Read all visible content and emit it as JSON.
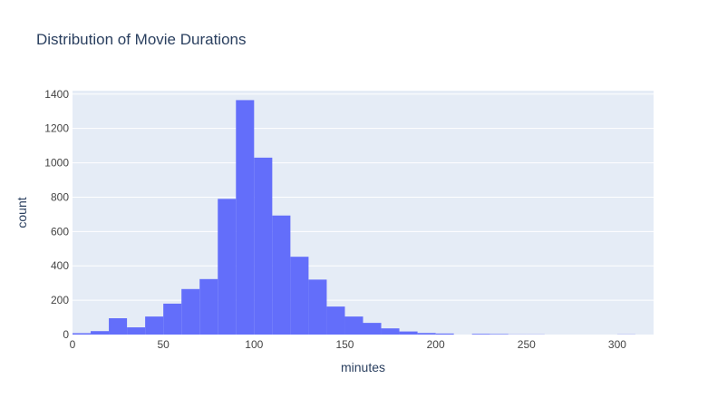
{
  "chart_data": {
    "type": "bar",
    "title": "Distribution of Movie Durations",
    "xlabel": "minutes",
    "ylabel": "count",
    "xlim": [
      0,
      320
    ],
    "ylim": [
      0,
      1420
    ],
    "bin_width": 10,
    "x_ticks": [
      0,
      50,
      100,
      150,
      200,
      250,
      300
    ],
    "y_ticks": [
      0,
      200,
      400,
      600,
      800,
      1000,
      1200,
      1400
    ],
    "grid": true,
    "bins": [
      {
        "x0": 0,
        "x1": 10,
        "count": 8
      },
      {
        "x0": 10,
        "x1": 20,
        "count": 20
      },
      {
        "x0": 20,
        "x1": 30,
        "count": 95
      },
      {
        "x0": 30,
        "x1": 40,
        "count": 42
      },
      {
        "x0": 40,
        "x1": 50,
        "count": 105
      },
      {
        "x0": 50,
        "x1": 60,
        "count": 180
      },
      {
        "x0": 60,
        "x1": 70,
        "count": 265
      },
      {
        "x0": 70,
        "x1": 80,
        "count": 323
      },
      {
        "x0": 80,
        "x1": 90,
        "count": 790
      },
      {
        "x0": 90,
        "x1": 100,
        "count": 1365
      },
      {
        "x0": 100,
        "x1": 110,
        "count": 1030
      },
      {
        "x0": 110,
        "x1": 120,
        "count": 693
      },
      {
        "x0": 120,
        "x1": 130,
        "count": 453
      },
      {
        "x0": 130,
        "x1": 140,
        "count": 320
      },
      {
        "x0": 140,
        "x1": 150,
        "count": 163
      },
      {
        "x0": 150,
        "x1": 160,
        "count": 105
      },
      {
        "x0": 160,
        "x1": 170,
        "count": 68
      },
      {
        "x0": 170,
        "x1": 180,
        "count": 36
      },
      {
        "x0": 180,
        "x1": 190,
        "count": 18
      },
      {
        "x0": 190,
        "x1": 200,
        "count": 9
      },
      {
        "x0": 200,
        "x1": 210,
        "count": 6
      },
      {
        "x0": 210,
        "x1": 220,
        "count": 0
      },
      {
        "x0": 220,
        "x1": 230,
        "count": 4
      },
      {
        "x0": 230,
        "x1": 240,
        "count": 3
      },
      {
        "x0": 240,
        "x1": 250,
        "count": 1
      },
      {
        "x0": 250,
        "x1": 260,
        "count": 1
      },
      {
        "x0": 260,
        "x1": 270,
        "count": 0
      },
      {
        "x0": 270,
        "x1": 280,
        "count": 0
      },
      {
        "x0": 280,
        "x1": 290,
        "count": 0
      },
      {
        "x0": 290,
        "x1": 300,
        "count": 0
      },
      {
        "x0": 300,
        "x1": 310,
        "count": 1
      }
    ],
    "colors": {
      "bar": "#636efa",
      "plot_bg": "#e5ecf6",
      "grid": "#ffffff",
      "text": "#2a3f5f",
      "tick_text": "#444444"
    }
  }
}
